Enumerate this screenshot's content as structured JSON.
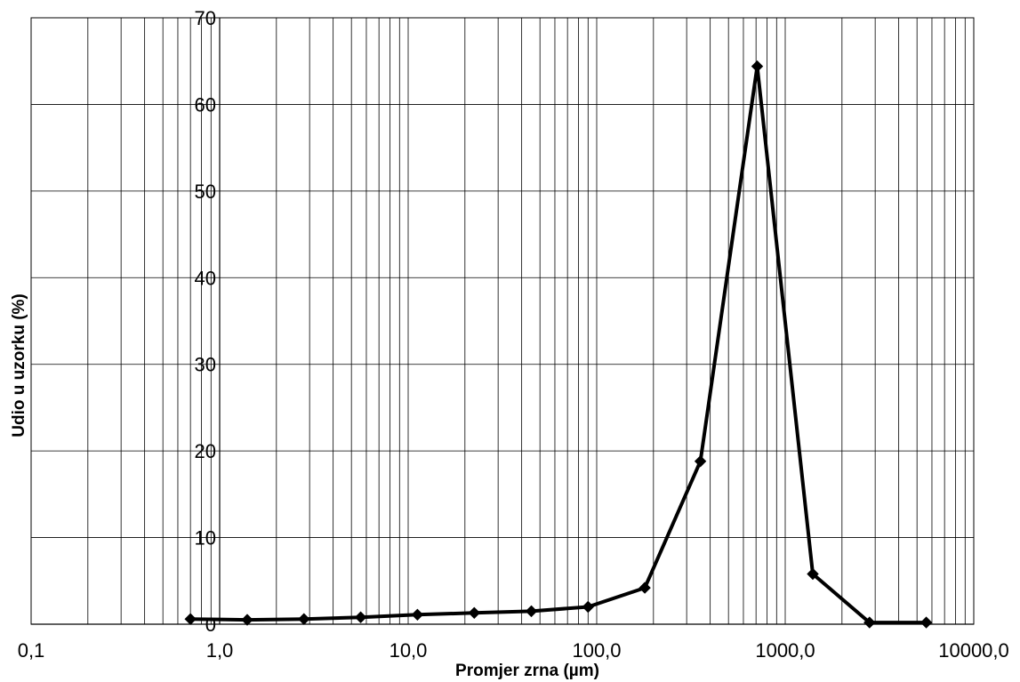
{
  "chart_data": {
    "type": "line",
    "title": "",
    "xlabel": "Promjer zrna (µm)",
    "ylabel": "Udio u uzorku (%)",
    "x_scale": "log",
    "xlim": [
      0.1,
      10000
    ],
    "ylim": [
      0,
      70
    ],
    "x_tick_labels": [
      "0,1",
      "1,0",
      "10,0",
      "100,0",
      "1000,0",
      "10000,0"
    ],
    "x_tick_values": [
      0.1,
      1,
      10,
      100,
      1000,
      10000
    ],
    "y_tick_labels": [
      "0",
      "10",
      "20",
      "30",
      "40",
      "50",
      "60",
      "70"
    ],
    "y_tick_values": [
      0,
      10,
      20,
      30,
      40,
      50,
      60,
      70
    ],
    "grid": true,
    "legend": "none",
    "line_color": "#000000",
    "marker": "diamond",
    "series": [
      {
        "x": [
          0.7,
          1.4,
          2.8,
          5.6,
          11.2,
          22.4,
          45,
          90,
          180,
          355,
          710,
          1400,
          2800,
          5600
        ],
        "y": [
          0.6,
          0.5,
          0.6,
          0.8,
          1.1,
          1.3,
          1.5,
          2.0,
          4.2,
          18.8,
          64.4,
          5.8,
          0.2,
          0.2
        ]
      }
    ]
  }
}
